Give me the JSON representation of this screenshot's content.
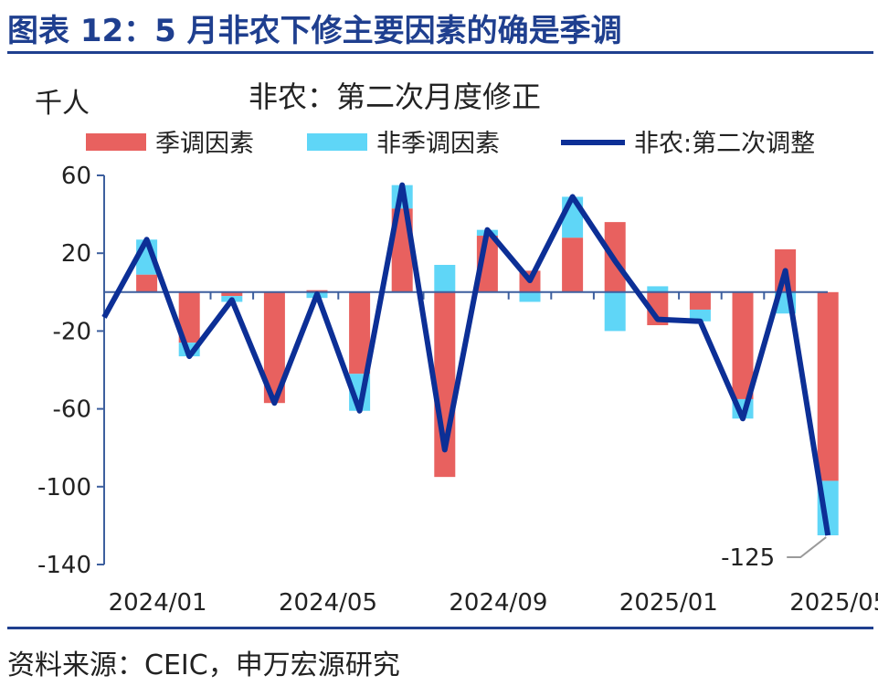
{
  "figure": {
    "title": "图表 12：5 月非农下修主要因素的确是季调",
    "source": "资料来源：CEIC，申万宏源研究"
  },
  "colors": {
    "seasonal": "#e8615f",
    "non_seasonal": "#5fd6f7",
    "line": "#0c2f96",
    "axis": "#3d5f9e",
    "title": "#1f3f8f"
  },
  "chart_data": {
    "type": "bar",
    "title": "非农：第二次月度修正",
    "ylabel": "千人",
    "ylim": [
      -140,
      60
    ],
    "yticks": [
      60,
      20,
      -20,
      -60,
      -100,
      -140
    ],
    "x": [
      "2023/12",
      "2024/01",
      "2024/02",
      "2024/03",
      "2024/04",
      "2024/05",
      "2024/06",
      "2024/07",
      "2024/08",
      "2024/09",
      "2024/10",
      "2024/11",
      "2024/12",
      "2025/01",
      "2025/02",
      "2025/03",
      "2025/04",
      "2025/05"
    ],
    "xtick_labels": [
      "2024/01",
      "2024/05",
      "2024/09",
      "2025/01",
      "2025/05"
    ],
    "series": [
      {
        "name": "季调因素",
        "kind": "stacked-bar",
        "values": [
          null,
          9,
          -26,
          -2,
          -57,
          1,
          -42,
          43,
          -95,
          29,
          11,
          28,
          36,
          -17,
          -9,
          -55,
          22,
          -97
        ]
      },
      {
        "name": "非季调因素",
        "kind": "stacked-bar",
        "values": [
          null,
          18,
          -7,
          -3,
          0,
          -3,
          -19,
          12,
          14,
          3,
          -5,
          21,
          -20,
          3,
          -6,
          -10,
          -11,
          -28
        ]
      },
      {
        "name": "非农:第二次调整",
        "kind": "line",
        "values": [
          -13,
          27,
          -33,
          -4,
          -57,
          -1,
          -61,
          55,
          -81,
          32,
          6,
          49,
          16,
          -14,
          -15,
          -65,
          11,
          -125
        ]
      }
    ],
    "annotations": [
      {
        "x": "2025/05",
        "label": "-125"
      }
    ]
  }
}
